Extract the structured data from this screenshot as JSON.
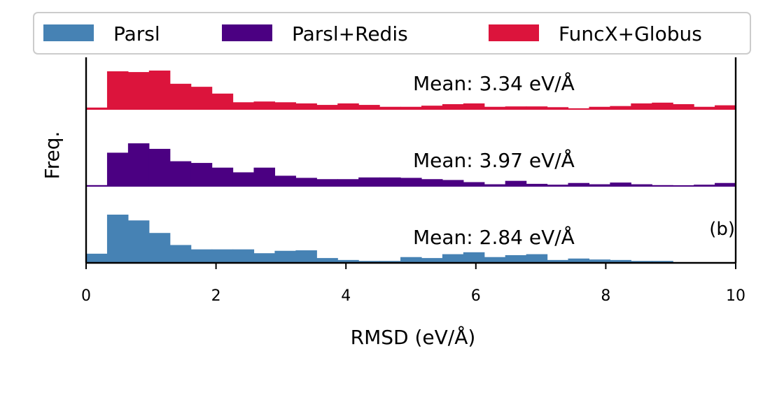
{
  "chart_data": {
    "type": "bar",
    "title": "",
    "xlabel": "RMSD (eV/Å)",
    "ylabel": "Freq.",
    "xlim": [
      0,
      10
    ],
    "xticks": [
      0,
      2,
      4,
      6,
      8,
      10
    ],
    "grid": false,
    "legend": {
      "position": "top",
      "entries": [
        "Parsl",
        "Parsl+Redis",
        "FuncX+Globus"
      ]
    },
    "panel_label": "(b)",
    "bin_edges": [
      0.0,
      0.3226,
      0.6452,
      0.9677,
      1.2903,
      1.6129,
      1.9355,
      2.2581,
      2.5806,
      2.9032,
      3.2258,
      3.5484,
      3.871,
      4.1935,
      4.5161,
      4.8387,
      5.1613,
      5.4839,
      5.8065,
      6.129,
      6.4516,
      6.7742,
      7.0968,
      7.4194,
      7.7419,
      8.0645,
      8.3871,
      8.7097,
      9.0323,
      9.3548,
      9.6774,
      10.0
    ],
    "series": [
      {
        "name": "FuncX+Globus",
        "color": "#dc143c",
        "mean_label": "Mean: 3.34 eV/Å",
        "values": [
          0.04,
          1.0,
          0.98,
          1.02,
          0.67,
          0.59,
          0.41,
          0.18,
          0.2,
          0.18,
          0.15,
          0.11,
          0.15,
          0.11,
          0.06,
          0.06,
          0.09,
          0.13,
          0.15,
          0.06,
          0.07,
          0.07,
          0.05,
          0.02,
          0.06,
          0.08,
          0.15,
          0.17,
          0.13,
          0.06,
          0.1
        ]
      },
      {
        "name": "Parsl+Redis",
        "color": "#4b0082",
        "mean_label": "Mean: 3.97 eV/Å",
        "values": [
          0.02,
          0.78,
          1.0,
          0.87,
          0.58,
          0.54,
          0.43,
          0.32,
          0.43,
          0.24,
          0.19,
          0.16,
          0.16,
          0.2,
          0.2,
          0.19,
          0.16,
          0.14,
          0.09,
          0.04,
          0.12,
          0.05,
          0.03,
          0.07,
          0.04,
          0.08,
          0.04,
          0.02,
          0.01,
          0.03,
          0.07
        ]
      },
      {
        "name": "Parsl",
        "color": "#4682b4",
        "mean_label": "Mean: 2.84 eV/Å",
        "values": [
          0.19,
          1.0,
          0.88,
          0.62,
          0.37,
          0.28,
          0.28,
          0.28,
          0.2,
          0.25,
          0.26,
          0.1,
          0.06,
          0.04,
          0.04,
          0.12,
          0.1,
          0.18,
          0.22,
          0.12,
          0.16,
          0.18,
          0.06,
          0.09,
          0.07,
          0.06,
          0.04,
          0.04,
          0.0,
          0.0,
          0.0
        ]
      }
    ]
  }
}
